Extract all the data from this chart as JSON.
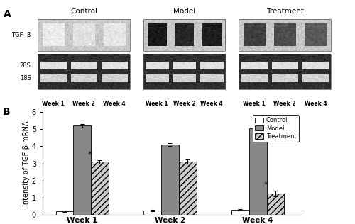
{
  "panel_A_label": "A",
  "panel_B_label": "B",
  "groups": [
    "Control",
    "Model",
    "Treatment"
  ],
  "weeks": [
    "Week 1",
    "Week 2",
    "Week 4"
  ],
  "bar_values": {
    "Control": [
      0.23,
      0.25,
      0.3
    ],
    "Model": [
      5.2,
      4.1,
      5.05
    ],
    "Treatment": [
      3.1,
      3.1,
      1.25
    ]
  },
  "bar_errors": {
    "Control": [
      0.04,
      0.04,
      0.05
    ],
    "Model": [
      0.1,
      0.08,
      0.07
    ],
    "Treatment": [
      0.1,
      0.12,
      0.18
    ]
  },
  "bar_colors": {
    "Control": "#ffffff",
    "Model": "#888888",
    "Treatment": "#cccccc"
  },
  "bar_edgecolors": {
    "Control": "#000000",
    "Model": "#000000",
    "Treatment": "#000000"
  },
  "bar_hatches": {
    "Control": "",
    "Model": "",
    "Treatment": "////"
  },
  "ylabel": "Intensity of TGF-β mRNA",
  "ylim": [
    0,
    6
  ],
  "yticks": [
    0,
    1,
    2,
    3,
    4,
    5,
    6
  ],
  "significance": {
    "Week 1": [
      "Treatment"
    ],
    "Week 4": [
      "Treatment"
    ]
  },
  "background_color": "#ffffff",
  "figure_width": 5.0,
  "figure_height": 3.16
}
